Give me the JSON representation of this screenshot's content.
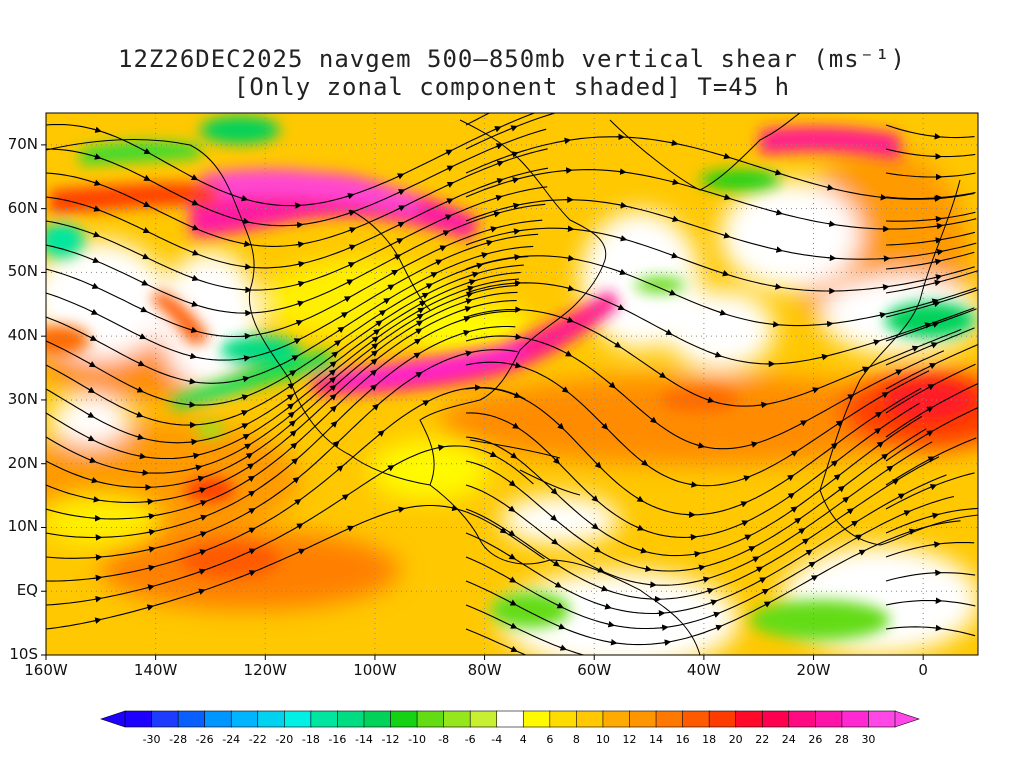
{
  "title": {
    "line1": "12Z26DEC2025 navgem 500–850mb vertical shear (ms⁻¹)",
    "line2": "[Only zonal component shaded] T=45 h"
  },
  "axes": {
    "lat_labels": [
      "70N",
      "60N",
      "50N",
      "40N",
      "30N",
      "20N",
      "10N",
      "EQ",
      "10S"
    ],
    "lat_values": [
      70,
      60,
      50,
      40,
      30,
      20,
      10,
      0,
      -10
    ],
    "lon_labels": [
      "160W",
      "140W",
      "120W",
      "100W",
      "80W",
      "60W",
      "40W",
      "20W",
      "0"
    ],
    "lon_values": [
      -160,
      -140,
      -120,
      -100,
      -80,
      -60,
      -40,
      -20,
      0
    ]
  },
  "colorbar": {
    "labels": [
      "-30",
      "-28",
      "-26",
      "-24",
      "-22",
      "-20",
      "-18",
      "-16",
      "-14",
      "-12",
      "-10",
      "-8",
      "-6",
      "-4",
      "4",
      "6",
      "8",
      "10",
      "12",
      "14",
      "16",
      "18",
      "20",
      "22",
      "24",
      "26",
      "28",
      "30"
    ],
    "colors": [
      "#1e00ff",
      "#1e3cff",
      "#0a60ff",
      "#0096ff",
      "#00b4ff",
      "#00d2f0",
      "#00f0e6",
      "#00e6a0",
      "#00dc82",
      "#00d25a",
      "#14d214",
      "#64dc14",
      "#96e61e",
      "#c8f032",
      "#ffffff",
      "#fffa00",
      "#ffdc00",
      "#ffc800",
      "#ffaa00",
      "#ff9600",
      "#ff7800",
      "#ff5a00",
      "#ff3c00",
      "#ff0a28",
      "#ff0050",
      "#ff0a82",
      "#ff14aa",
      "#ff28d2",
      "#ff46e6"
    ]
  },
  "map_extent": {
    "lon_min": -160,
    "lon_max": 10,
    "lat_min": -10,
    "lat_max": 75
  }
}
